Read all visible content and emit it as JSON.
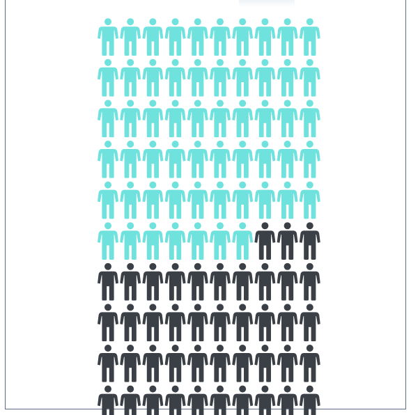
{
  "chart_data": {
    "type": "pictogram",
    "rows": 10,
    "columns": 10,
    "total": 100,
    "series": [
      {
        "value": 57,
        "color": "#6fe2dd"
      },
      {
        "value": 43,
        "color": "#3b4046"
      }
    ],
    "icon": "person-icon"
  }
}
